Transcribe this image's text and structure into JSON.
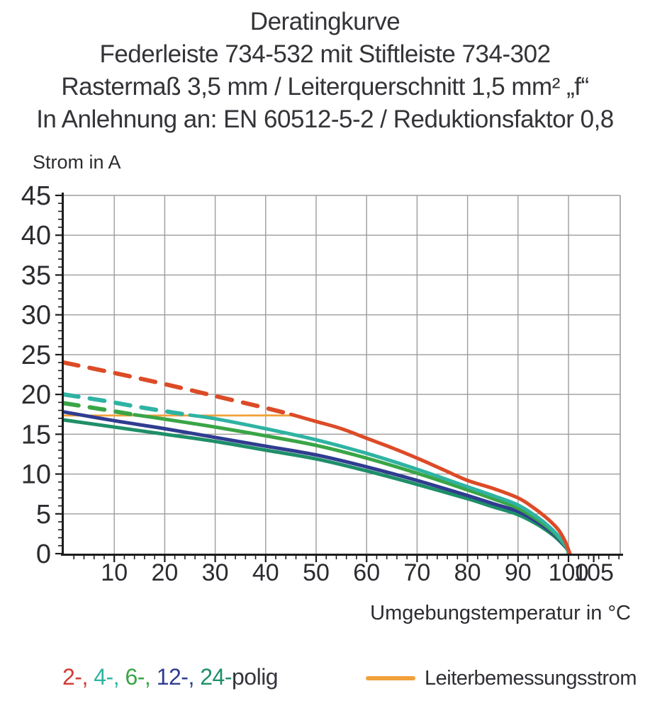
{
  "header": {
    "lines": [
      "Deratingkurve",
      "Federleiste 734-532 mit Stiftleiste 734-302",
      "Rastermaß 3,5 mm / Leiterquerschnitt 1,5 mm² „f“",
      "In Anlehnung an: EN 60512-5-2 / Reduktionsfaktor 0,8"
    ]
  },
  "legend": {
    "parts": [
      {
        "text": "2-, ",
        "color": "#d23a33"
      },
      {
        "text": "4-, ",
        "color": "#2fb3a3"
      },
      {
        "text": "6-, ",
        "color": "#3aa546"
      },
      {
        "text": "12-, ",
        "color": "#2f3c90"
      },
      {
        "text": "24-",
        "color": "#1f8f69"
      },
      {
        "text": "polig",
        "color": "#34343b"
      }
    ],
    "line_label": "Leiterbemessungsstrom",
    "line_color": "#f2a13b"
  },
  "chart_data": {
    "type": "line",
    "title": "Deratingkurve",
    "xlabel": "Umgebungstemperatur in °C",
    "ylabel": "Strom in A",
    "x_range": [
      0,
      110
    ],
    "y_range": [
      0,
      45
    ],
    "x_ticks_major": [
      10,
      20,
      30,
      40,
      50,
      60,
      70,
      80,
      90,
      100,
      105
    ],
    "x_gridlines": [
      10,
      20,
      30,
      40,
      50,
      60,
      70,
      80,
      90,
      100
    ],
    "x_minor_step": 2,
    "y_ticks_major": [
      0,
      5,
      10,
      15,
      20,
      25,
      30,
      35,
      40,
      45
    ],
    "y_minor_step": 1,
    "grid": true,
    "grid_color": "#9c9c9c",
    "axis_color": "#1c1c1c",
    "tick_label_color": "#2b2b30",
    "dash_note": "dashed segments lie above the rated conductor current (Leiterbemessungsstrom)",
    "series": [
      {
        "name": "Leiterbemessungsstrom",
        "color": "#f2a13b",
        "width": 2.8,
        "solid": [
          [
            0,
            17.35
          ],
          [
            30,
            17.35
          ],
          [
            45,
            17.35
          ],
          [
            47,
            17.15
          ]
        ]
      },
      {
        "name": "24-polig",
        "color": "#1f8f69",
        "width": 5,
        "solid": [
          [
            0,
            16.8
          ],
          [
            10,
            15.9
          ],
          [
            20,
            15.0
          ],
          [
            30,
            14.1
          ],
          [
            40,
            13.0
          ],
          [
            50,
            11.9
          ],
          [
            60,
            10.4
          ],
          [
            70,
            8.7
          ],
          [
            80,
            6.9
          ],
          [
            85,
            5.9
          ],
          [
            90,
            4.9
          ],
          [
            94,
            3.6
          ],
          [
            97,
            2.3
          ],
          [
            99,
            1.1
          ],
          [
            99.8,
            0.5
          ],
          [
            100,
            0
          ]
        ]
      },
      {
        "name": "12-polig",
        "color": "#2f3c90",
        "width": 5,
        "solid": [
          [
            0,
            17.8
          ],
          [
            10,
            16.7
          ],
          [
            20,
            15.7
          ],
          [
            30,
            14.6
          ],
          [
            40,
            13.5
          ],
          [
            50,
            12.4
          ],
          [
            60,
            10.9
          ],
          [
            70,
            9.2
          ],
          [
            80,
            7.3
          ],
          [
            85,
            6.3
          ],
          [
            90,
            5.3
          ],
          [
            94,
            3.9
          ],
          [
            97,
            2.5
          ],
          [
            99,
            1.2
          ],
          [
            99.8,
            0.55
          ],
          [
            100,
            0
          ]
        ]
      },
      {
        "name": "6-polig",
        "color": "#3aa546",
        "width": 5,
        "dashed": [
          [
            0,
            18.9
          ],
          [
            7,
            18.2
          ],
          [
            14,
            17.45
          ]
        ],
        "solid": [
          [
            14,
            17.45
          ],
          [
            20,
            16.9
          ],
          [
            30,
            15.9
          ],
          [
            40,
            14.8
          ],
          [
            50,
            13.6
          ],
          [
            60,
            12.0
          ],
          [
            70,
            10.1
          ],
          [
            80,
            8.0
          ],
          [
            85,
            6.9
          ],
          [
            90,
            5.7
          ],
          [
            94,
            4.2
          ],
          [
            97,
            2.7
          ],
          [
            99,
            1.3
          ],
          [
            99.8,
            0.6
          ],
          [
            100,
            0
          ]
        ]
      },
      {
        "name": "4-polig",
        "color": "#2fb3a3",
        "width": 5,
        "dashed": [
          [
            0,
            20.0
          ],
          [
            8,
            19.2
          ],
          [
            16,
            18.3
          ],
          [
            25,
            17.4
          ]
        ],
        "solid": [
          [
            25,
            17.4
          ],
          [
            30,
            16.95
          ],
          [
            40,
            15.7
          ],
          [
            50,
            14.3
          ],
          [
            60,
            12.6
          ],
          [
            70,
            10.6
          ],
          [
            80,
            8.4
          ],
          [
            85,
            7.3
          ],
          [
            90,
            6.1
          ],
          [
            94,
            4.5
          ],
          [
            97,
            2.9
          ],
          [
            99,
            1.4
          ],
          [
            99.8,
            0.65
          ],
          [
            100,
            0
          ]
        ]
      },
      {
        "name": "2-polig",
        "color": "#dc4b27",
        "width": 5,
        "dashed": [
          [
            0,
            24.0
          ],
          [
            10,
            22.7
          ],
          [
            20,
            21.3
          ],
          [
            30,
            19.8
          ],
          [
            40,
            18.3
          ],
          [
            45,
            17.5
          ]
        ],
        "solid": [
          [
            45,
            17.5
          ],
          [
            50,
            16.6
          ],
          [
            55,
            15.7
          ],
          [
            60,
            14.5
          ],
          [
            65,
            13.3
          ],
          [
            70,
            12.0
          ],
          [
            75,
            10.6
          ],
          [
            80,
            9.2
          ],
          [
            85,
            8.2
          ],
          [
            90,
            7.0
          ],
          [
            93,
            5.8
          ],
          [
            96,
            4.3
          ],
          [
            98,
            3.0
          ],
          [
            99.3,
            1.6
          ],
          [
            100.3,
            0
          ]
        ]
      }
    ]
  }
}
